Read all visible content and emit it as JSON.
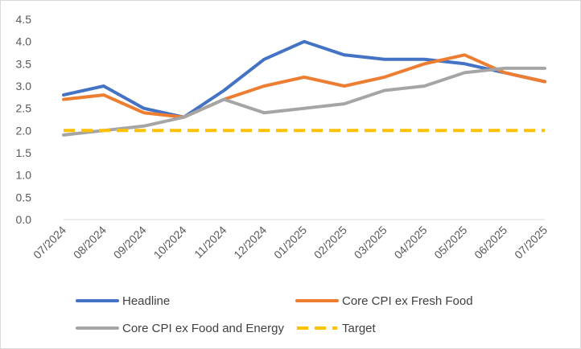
{
  "chart_data": {
    "type": "line",
    "title": "",
    "xlabel": "",
    "ylabel": "",
    "categories": [
      "07/2024",
      "08/2024",
      "09/2024",
      "10/2024",
      "11/2024",
      "12/2024",
      "01/2025",
      "02/2025",
      "03/2025",
      "04/2025",
      "05/2025",
      "06/2025",
      "07/2025"
    ],
    "y_ticks": [
      "0.0",
      "0.5",
      "1.0",
      "1.5",
      "2.0",
      "2.5",
      "3.0",
      "3.5",
      "4.0",
      "4.5"
    ],
    "ylim": [
      0,
      4.5
    ],
    "grid": false,
    "legend_position": "bottom",
    "series": [
      {
        "name": "Headline",
        "color": "#4472C4",
        "dashed": false,
        "values": [
          2.8,
          3.0,
          2.5,
          2.3,
          2.9,
          3.6,
          4.0,
          3.7,
          3.6,
          3.6,
          3.5,
          3.3,
          3.1
        ]
      },
      {
        "name": "Core CPI ex Fresh Food",
        "color": "#ED7D31",
        "dashed": false,
        "values": [
          2.7,
          2.8,
          2.4,
          2.3,
          2.7,
          3.0,
          3.2,
          3.0,
          3.2,
          3.5,
          3.7,
          3.3,
          3.1
        ]
      },
      {
        "name": "Core CPI ex Food and Energy",
        "color": "#A5A5A5",
        "dashed": false,
        "values": [
          1.9,
          2.0,
          2.1,
          2.3,
          2.7,
          2.4,
          2.5,
          2.6,
          2.9,
          3.0,
          3.3,
          3.4,
          3.4
        ]
      },
      {
        "name": "Target",
        "color": "#FFC000",
        "dashed": true,
        "values": [
          2.0,
          2.0,
          2.0,
          2.0,
          2.0,
          2.0,
          2.0,
          2.0,
          2.0,
          2.0,
          2.0,
          2.0,
          2.0
        ]
      }
    ]
  }
}
